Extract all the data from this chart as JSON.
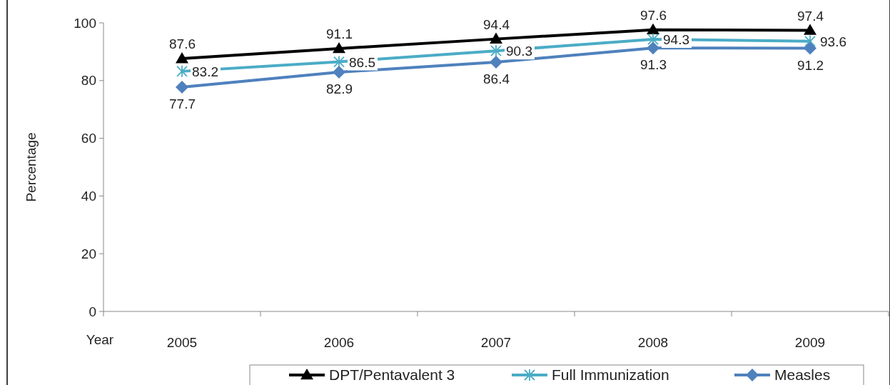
{
  "chart_data": {
    "type": "line",
    "xlabel": "Year",
    "ylabel": "Percentage",
    "categories": [
      "2005",
      "2006",
      "2007",
      "2008",
      "2009"
    ],
    "series": [
      {
        "name": "DPT/Pentavalent 3",
        "color": "#000000",
        "marker": "triangle",
        "values": [
          87.6,
          91.1,
          94.4,
          97.6,
          97.4
        ]
      },
      {
        "name": "Full Immunization",
        "color": "#4bacc6",
        "marker": "cross",
        "values": [
          83.2,
          86.5,
          90.3,
          94.3,
          93.6
        ]
      },
      {
        "name": "Measles",
        "color": "#4f81bd",
        "marker": "diamond",
        "values": [
          77.7,
          82.9,
          86.4,
          91.3,
          91.2
        ]
      }
    ],
    "ylim": [
      0,
      100
    ],
    "yticks": [
      0,
      20,
      40,
      60,
      80,
      100
    ],
    "grid": false,
    "legend": "bottom",
    "data_labels": true
  }
}
